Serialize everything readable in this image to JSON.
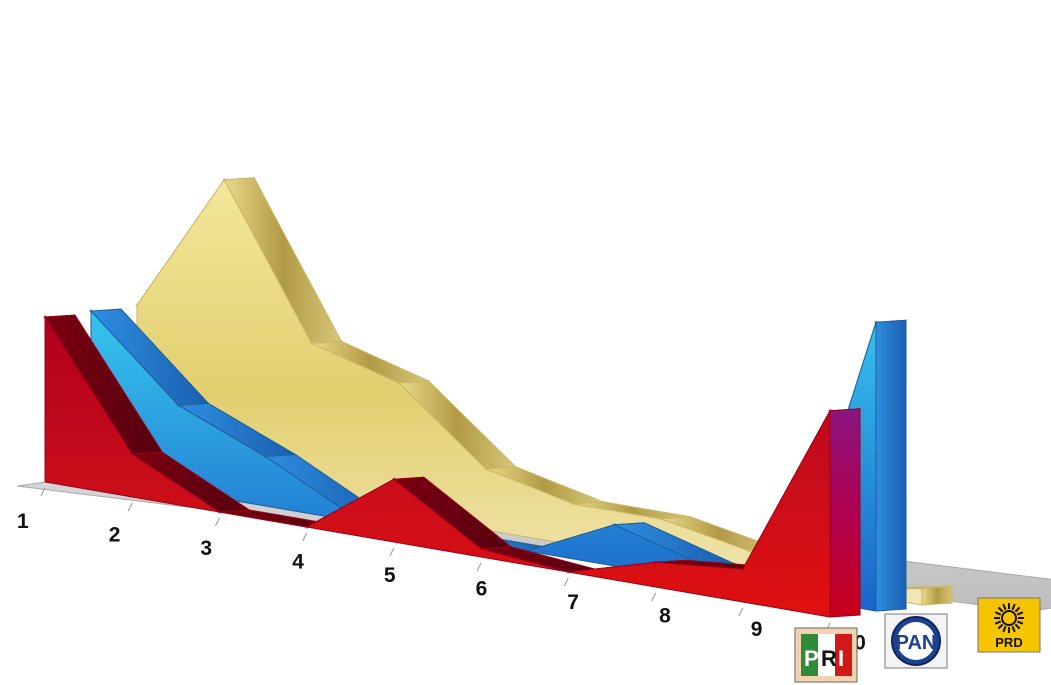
{
  "chart_data": {
    "type": "area",
    "style": "3d-ribbon",
    "categories": [
      "1",
      "2",
      "3",
      "4",
      "5",
      "6",
      "7",
      "8",
      "9",
      "10"
    ],
    "series": [
      {
        "name": "PRD",
        "color": "#d8c76a",
        "values": [
          1.0,
          1.85,
          0.95,
          0.8,
          0.37,
          0.25,
          0.25,
          0.15,
          0.0,
          0.1
        ]
      },
      {
        "name": "PAN",
        "color": "#1f7fd8",
        "values": [
          1.0,
          0.52,
          0.3,
          0.03,
          0.0,
          0.0,
          0.25,
          0.1,
          0.0,
          1.75
        ]
      },
      {
        "name": "PRI",
        "color": "#c8001a",
        "values": [
          1.0,
          0.26,
          0.0,
          0.0,
          0.38,
          0.05,
          0.0,
          0.15,
          0.2,
          1.25
        ]
      }
    ],
    "grid": false,
    "legend": "bottom-right"
  },
  "legend_logos": [
    {
      "name": "PRI",
      "letters": [
        "P",
        "R",
        "I"
      ],
      "colors": [
        "#2e8b3a",
        "#ffffff",
        "#d01a1a"
      ]
    },
    {
      "name": "PAN",
      "text": "PAN",
      "bg": "#1f3f8f",
      "fg": "#ffffff"
    },
    {
      "name": "PRD",
      "text": "PRD",
      "bg": "#f6c400",
      "fg": "#111111"
    }
  ]
}
